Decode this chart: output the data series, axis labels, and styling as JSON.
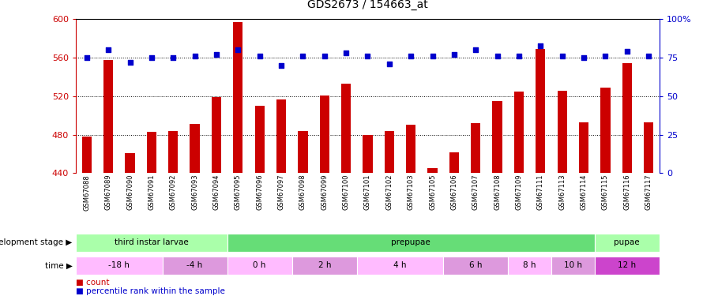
{
  "title": "GDS2673 / 154663_at",
  "samples": [
    "GSM67088",
    "GSM67089",
    "GSM67090",
    "GSM67091",
    "GSM67092",
    "GSM67093",
    "GSM67094",
    "GSM67095",
    "GSM67096",
    "GSM67097",
    "GSM67098",
    "GSM67099",
    "GSM67100",
    "GSM67101",
    "GSM67102",
    "GSM67103",
    "GSM67105",
    "GSM67106",
    "GSM67107",
    "GSM67108",
    "GSM67109",
    "GSM67111",
    "GSM67113",
    "GSM67114",
    "GSM67115",
    "GSM67116",
    "GSM67117"
  ],
  "counts": [
    478,
    558,
    461,
    483,
    484,
    491,
    519,
    597,
    510,
    517,
    484,
    521,
    533,
    480,
    484,
    490,
    445,
    462,
    492,
    515,
    525,
    569,
    526,
    493,
    529,
    554,
    493
  ],
  "percentiles": [
    75,
    80,
    72,
    75,
    75,
    76,
    77,
    80,
    76,
    70,
    76,
    76,
    78,
    76,
    71,
    76,
    76,
    77,
    80,
    76,
    76,
    83,
    76,
    75,
    76,
    79,
    76
  ],
  "ylim_left": [
    440,
    600
  ],
  "ylim_right": [
    0,
    100
  ],
  "yticks_left": [
    440,
    480,
    520,
    560,
    600
  ],
  "yticks_right": [
    0,
    25,
    50,
    75,
    100
  ],
  "bar_color": "#cc0000",
  "dot_color": "#0000cc",
  "title_color": "#000000",
  "left_axis_color": "#cc0000",
  "right_axis_color": "#0000cc",
  "dev_stages": [
    {
      "label": "third instar larvae",
      "start": 0,
      "end": 7,
      "color": "#aaffaa"
    },
    {
      "label": "prepupae",
      "start": 7,
      "end": 24,
      "color": "#66dd77"
    },
    {
      "label": "pupae",
      "start": 24,
      "end": 27,
      "color": "#aaffaa"
    }
  ],
  "time_labels": [
    {
      "label": "-18 h",
      "start": 0,
      "end": 4,
      "color": "#ffbbff"
    },
    {
      "label": "-4 h",
      "start": 4,
      "end": 7,
      "color": "#dd99dd"
    },
    {
      "label": "0 h",
      "start": 7,
      "end": 10,
      "color": "#ffbbff"
    },
    {
      "label": "2 h",
      "start": 10,
      "end": 13,
      "color": "#dd99dd"
    },
    {
      "label": "4 h",
      "start": 13,
      "end": 17,
      "color": "#ffbbff"
    },
    {
      "label": "6 h",
      "start": 17,
      "end": 20,
      "color": "#dd99dd"
    },
    {
      "label": "8 h",
      "start": 20,
      "end": 22,
      "color": "#ffbbff"
    },
    {
      "label": "10 h",
      "start": 22,
      "end": 24,
      "color": "#dd99dd"
    },
    {
      "label": "12 h",
      "start": 24,
      "end": 27,
      "color": "#cc44cc"
    }
  ],
  "background_color": "#ffffff"
}
